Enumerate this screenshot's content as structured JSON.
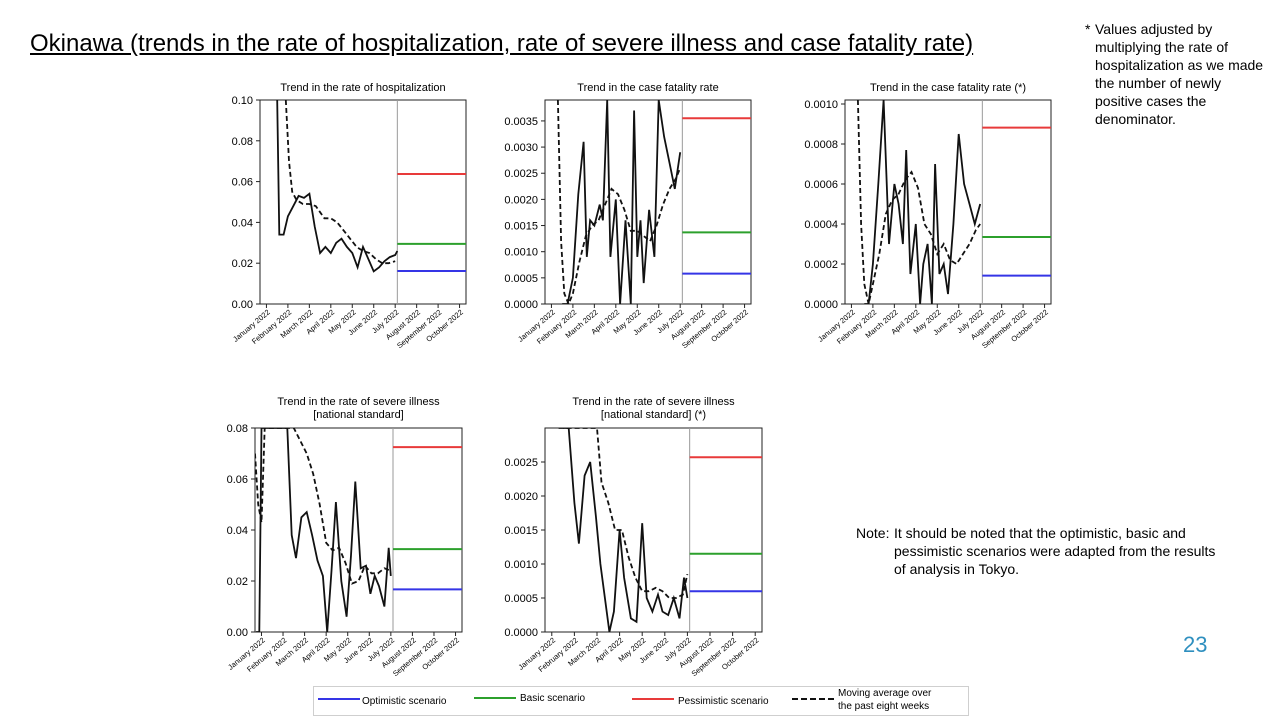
{
  "slide": {
    "title": "Okinawa (trends in the rate of hospitalization, rate of severe illness and case fatality rate)",
    "footnote_mark": "*",
    "footnote_text": "Values adjusted by multiplying the rate of hospitalization as we made the number of newly positive cases the denominator.",
    "note_lead": "Note:",
    "note_line1": "It should be noted that the optimistic, basic and",
    "note_line2": "pessimistic scenarios were adapted from the results of analysis in Tokyo.",
    "page_number": "23"
  },
  "colors": {
    "optimistic": "#3535e6",
    "basic": "#2ca02c",
    "pessimistic": "#e83a3a",
    "observed": "#111111",
    "divider": "#9a9a9a"
  },
  "legend": {
    "optimistic": "Optimistic scenario",
    "basic": "Basic scenario",
    "pessimistic": "Pessimistic scenario",
    "moving_avg_line1": "Moving average over",
    "moving_avg_line2": "the past eight weeks"
  },
  "chart_data": [
    {
      "type": "line",
      "title": [
        "Trend in the rate of hospitalization"
      ],
      "x_ticks": [
        "January 2022",
        "February 2022",
        "March 2022",
        "April 2022",
        "May 2022",
        "June 2022",
        "July 2022",
        "August 2022",
        "September 2022",
        "October 2022"
      ],
      "y_ticks": [
        "0.00",
        "0.02",
        "0.04",
        "0.06",
        "0.08",
        "0.10"
      ],
      "ylim": [
        0,
        0.1
      ],
      "xlim": [
        -0.3,
        9.3
      ],
      "divider_x": 6.1,
      "observed_x": [
        0.5,
        0.6,
        0.8,
        1.0,
        1.25,
        1.5,
        1.75,
        2.0,
        2.25,
        2.5,
        2.75,
        3.0,
        3.25,
        3.5,
        3.75,
        4.0,
        4.25,
        4.5,
        4.75,
        5.0,
        5.25,
        5.5,
        5.75,
        6.0,
        6.1
      ],
      "observed_y": [
        0.1,
        0.034,
        0.034,
        0.043,
        0.048,
        0.053,
        0.052,
        0.054,
        0.038,
        0.025,
        0.028,
        0.025,
        0.03,
        0.032,
        0.028,
        0.025,
        0.018,
        0.028,
        0.022,
        0.016,
        0.018,
        0.021,
        0.023,
        0.024,
        0.026
      ],
      "moving_avg_x": [
        0.9,
        1.05,
        1.2,
        1.4,
        1.7,
        2.0,
        2.3,
        2.7,
        3.0,
        3.3,
        3.6,
        3.9,
        4.2,
        4.5,
        4.8,
        5.1,
        5.4,
        5.7,
        6.0
      ],
      "moving_avg_y": [
        0.1,
        0.07,
        0.055,
        0.051,
        0.049,
        0.049,
        0.048,
        0.042,
        0.042,
        0.04,
        0.036,
        0.032,
        0.028,
        0.026,
        0.025,
        0.022,
        0.02,
        0.02,
        0.021
      ],
      "scenarios": {
        "optimistic": 0.0162,
        "basic": 0.0295,
        "pessimistic": 0.0637
      }
    },
    {
      "type": "line",
      "title": [
        "Trend in the case fatality rate"
      ],
      "x_ticks": [
        "January 2022",
        "February 2022",
        "March 2022",
        "April 2022",
        "May 2022",
        "June 2022",
        "July 2022",
        "August 2022",
        "September 2022",
        "October 2022"
      ],
      "y_ticks": [
        "0.0000",
        "0.0005",
        "0.0010",
        "0.0015",
        "0.0020",
        "0.0025",
        "0.0030",
        "0.0035"
      ],
      "ylim": [
        0,
        0.0039
      ],
      "xlim": [
        -0.3,
        9.3
      ],
      "divider_x": 6.1,
      "observed_x": [
        0.5,
        0.75,
        1.0,
        1.25,
        1.5,
        1.65,
        1.8,
        2.0,
        2.25,
        2.4,
        2.6,
        2.75,
        3.0,
        3.2,
        3.45,
        3.7,
        3.85,
        4.0,
        4.15,
        4.3,
        4.55,
        4.8,
        5.0,
        5.25,
        5.5,
        5.75,
        6.0
      ],
      "observed_y": [
        0.0,
        0.0,
        0.0005,
        0.0021,
        0.0031,
        0.0009,
        0.0016,
        0.0015,
        0.0019,
        0.0016,
        0.0039,
        0.0009,
        0.002,
        0.0,
        0.0016,
        0.0,
        0.0037,
        0.0009,
        0.0016,
        0.0004,
        0.0018,
        0.0009,
        0.004,
        0.0032,
        0.0027,
        0.0022,
        0.0029
      ],
      "moving_avg_x": [
        0.3,
        0.45,
        0.6,
        0.8,
        1.0,
        1.3,
        1.6,
        1.9,
        2.2,
        2.5,
        2.8,
        3.1,
        3.4,
        3.7,
        4.0,
        4.3,
        4.6,
        4.9,
        5.2,
        5.5,
        5.8,
        6.0
      ],
      "moving_avg_y": [
        0.0039,
        0.0012,
        0.0002,
        0.0,
        0.0002,
        0.0008,
        0.0013,
        0.0015,
        0.0016,
        0.0019,
        0.0022,
        0.0021,
        0.0018,
        0.0014,
        0.0014,
        0.0013,
        0.0012,
        0.0015,
        0.0019,
        0.0022,
        0.0024,
        0.0026
      ],
      "scenarios": {
        "optimistic": 0.00058,
        "basic": 0.00137,
        "pessimistic": 0.00355
      }
    },
    {
      "type": "line",
      "title": [
        "Trend in the case fatality rate (*)"
      ],
      "x_ticks": [
        "January 2022",
        "February 2022",
        "March 2022",
        "April 2022",
        "May 2022",
        "June 2022",
        "July 2022",
        "August 2022",
        "September 2022",
        "October 2022"
      ],
      "y_ticks": [
        "0.0000",
        "0.0002",
        "0.0004",
        "0.0006",
        "0.0008",
        "0.0010"
      ],
      "ylim": [
        0,
        0.00102
      ],
      "xlim": [
        -0.3,
        9.3
      ],
      "divider_x": 6.1,
      "observed_x": [
        0.6,
        0.8,
        1.0,
        1.25,
        1.5,
        1.75,
        2.0,
        2.2,
        2.4,
        2.55,
        2.75,
        3.0,
        3.2,
        3.35,
        3.55,
        3.75,
        3.9,
        4.1,
        4.3,
        4.5,
        4.75,
        5.0,
        5.25,
        5.5,
        5.75,
        6.0
      ],
      "observed_y": [
        0.0,
        0.0,
        0.0002,
        0.0006,
        0.00102,
        0.0003,
        0.0006,
        0.0005,
        0.0003,
        0.00077,
        0.00015,
        0.0004,
        0.0,
        0.0002,
        0.0003,
        0.0,
        0.0007,
        0.00015,
        0.0002,
        5e-05,
        0.0004,
        0.00085,
        0.0006,
        0.0005,
        0.0004,
        0.0005
      ],
      "moving_avg_x": [
        0.3,
        0.45,
        0.6,
        0.8,
        1.0,
        1.3,
        1.6,
        1.9,
        2.2,
        2.5,
        2.8,
        3.1,
        3.4,
        3.7,
        4.0,
        4.3,
        4.6,
        4.9,
        5.2,
        5.5,
        5.8,
        6.0
      ],
      "moving_avg_y": [
        0.00102,
        0.0004,
        0.0001,
        0.0,
        0.0001,
        0.00025,
        0.00045,
        0.00052,
        0.00055,
        0.00062,
        0.00066,
        0.00058,
        0.0004,
        0.00035,
        0.00025,
        0.0003,
        0.00022,
        0.0002,
        0.00025,
        0.0003,
        0.00037,
        0.0004
      ],
      "scenarios": {
        "optimistic": 0.000142,
        "basic": 0.000335,
        "pessimistic": 0.000882
      }
    },
    {
      "type": "line",
      "title": [
        "Trend in the rate of severe illness",
        "[national standard]"
      ],
      "x_ticks": [
        "January 2022",
        "February 2022",
        "March 2022",
        "April 2022",
        "May 2022",
        "June 2022",
        "July 2022",
        "August 2022",
        "September 2022",
        "October 2022"
      ],
      "y_ticks": [
        "0.00",
        "0.02",
        "0.04",
        "0.06",
        "0.08"
      ],
      "ylim": [
        0,
        0.08
      ],
      "xlim": [
        -0.3,
        9.3
      ],
      "divider_x": 6.1,
      "observed_x": [
        -0.25,
        -0.1,
        0.0,
        0.2,
        0.45,
        0.7,
        0.95,
        1.2,
        1.4,
        1.6,
        1.85,
        2.1,
        2.35,
        2.6,
        2.85,
        3.05,
        3.25,
        3.45,
        3.7,
        3.95,
        4.15,
        4.35,
        4.6,
        4.85,
        5.05,
        5.25,
        5.45,
        5.7,
        5.9,
        6.0
      ],
      "observed_y": [
        0.0,
        0.0,
        0.08,
        0.08,
        0.08,
        0.08,
        0.08,
        0.08,
        0.038,
        0.029,
        0.045,
        0.047,
        0.038,
        0.028,
        0.022,
        0.0,
        0.024,
        0.051,
        0.02,
        0.006,
        0.03,
        0.059,
        0.025,
        0.026,
        0.015,
        0.022,
        0.018,
        0.01,
        0.033,
        0.022
      ],
      "moving_avg_x": [
        -0.3,
        -0.15,
        0.0,
        0.15,
        0.3,
        0.5,
        0.7,
        0.9,
        1.2,
        1.5,
        1.8,
        2.1,
        2.4,
        2.7,
        3.0,
        3.3,
        3.6,
        3.9,
        4.2,
        4.5,
        4.8,
        5.1,
        5.4,
        5.7,
        6.0
      ],
      "moving_avg_y": [
        0.07,
        0.05,
        0.043,
        0.08,
        0.08,
        0.08,
        0.08,
        0.08,
        0.08,
        0.08,
        0.075,
        0.07,
        0.062,
        0.05,
        0.035,
        0.032,
        0.033,
        0.027,
        0.019,
        0.02,
        0.026,
        0.023,
        0.023,
        0.025,
        0.024
      ],
      "scenarios": {
        "optimistic": 0.0167,
        "basic": 0.0325,
        "pessimistic": 0.0725
      }
    },
    {
      "type": "line",
      "title": [
        "Trend in the rate of severe illness",
        "[national standard] (*)"
      ],
      "x_ticks": [
        "January 2022",
        "February 2022",
        "March 2022",
        "April 2022",
        "May 2022",
        "June 2022",
        "July 2022",
        "August 2022",
        "September 2022",
        "October 2022"
      ],
      "y_ticks": [
        "0.0000",
        "0.0005",
        "0.0010",
        "0.0015",
        "0.0020",
        "0.0025"
      ],
      "ylim": [
        0,
        0.003
      ],
      "xlim": [
        -0.3,
        9.3
      ],
      "divider_x": 6.1,
      "observed_x": [
        0.5,
        0.75,
        1.0,
        1.2,
        1.45,
        1.7,
        1.95,
        2.15,
        2.35,
        2.55,
        2.75,
        3.0,
        3.2,
        3.5,
        3.75,
        4.0,
        4.2,
        4.45,
        4.7,
        4.9,
        5.15,
        5.4,
        5.65,
        5.85,
        6.0
      ],
      "observed_y": [
        0.003,
        0.003,
        0.0019,
        0.0013,
        0.0023,
        0.0025,
        0.0017,
        0.001,
        0.0005,
        0.0,
        0.0003,
        0.0015,
        0.0008,
        0.0002,
        0.00015,
        0.0016,
        0.0005,
        0.0003,
        0.00055,
        0.0003,
        0.00025,
        0.0005,
        0.0002,
        0.0008,
        0.0005
      ],
      "moving_avg_x": [
        0.3,
        0.6,
        0.9,
        1.2,
        1.5,
        1.8,
        2.0,
        2.2,
        2.5,
        2.8,
        3.1,
        3.4,
        3.7,
        4.0,
        4.3,
        4.6,
        4.9,
        5.2,
        5.5,
        5.8,
        6.0
      ],
      "moving_avg_y": [
        0.003,
        0.003,
        0.003,
        0.003,
        0.003,
        0.003,
        0.003,
        0.0022,
        0.0019,
        0.0015,
        0.0015,
        0.0011,
        0.0008,
        0.0006,
        0.0006,
        0.00065,
        0.0006,
        0.0005,
        0.0005,
        0.00055,
        0.00085
      ],
      "scenarios": {
        "optimistic": 0.0006,
        "basic": 0.00115,
        "pessimistic": 0.00257
      }
    }
  ]
}
